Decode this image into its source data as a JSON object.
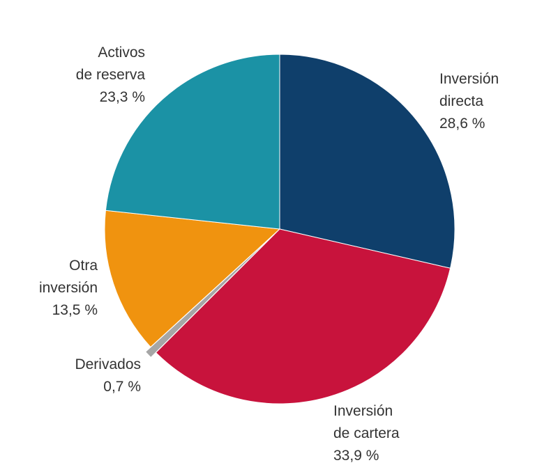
{
  "chart_data": {
    "type": "pie",
    "title": "",
    "start_angle_deg": 0,
    "direction": "clockwise",
    "slices": [
      {
        "lines": [
          "Inversión",
          "directa",
          "28,6 %"
        ],
        "value": 28.6,
        "color": "#0f3f6b"
      },
      {
        "lines": [
          "Inversión",
          "de cartera",
          "33,9 %"
        ],
        "value": 33.9,
        "color": "#c8133c"
      },
      {
        "lines": [
          "Derivados",
          "0,7 %"
        ],
        "value": 0.7,
        "color": "#a6a6a6"
      },
      {
        "lines": [
          "Otra",
          "inversión",
          "13,5 %"
        ],
        "value": 13.5,
        "color": "#f0930f"
      },
      {
        "lines": [
          "Activos",
          "de reserva",
          "23,3 %"
        ],
        "value": 23.3,
        "color": "#1b92a5"
      }
    ]
  }
}
